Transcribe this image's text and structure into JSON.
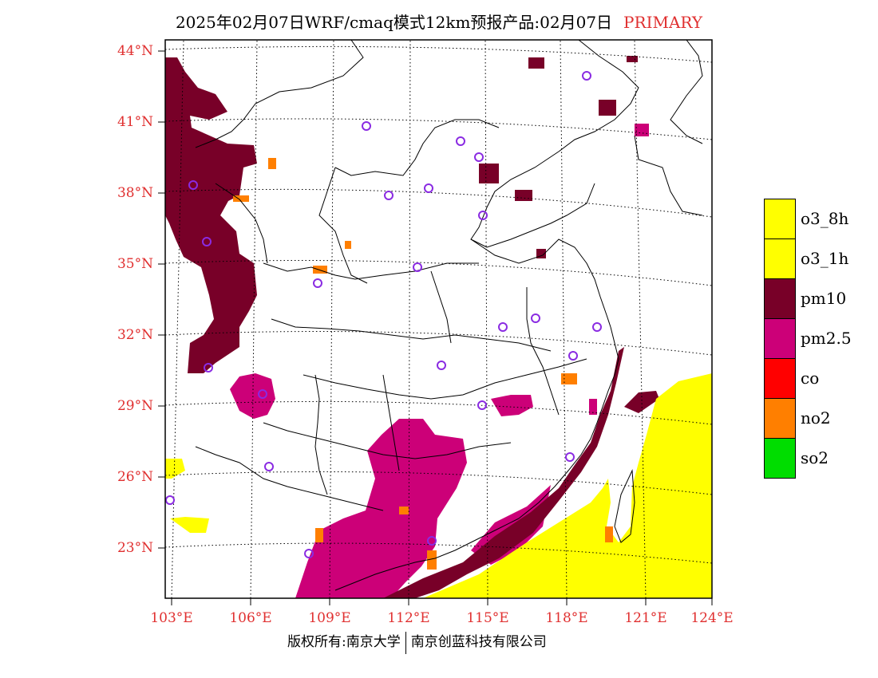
{
  "title": {
    "text": "2025年02月07日WRF/cmaq模式12km预报产品:02月07日",
    "tag": "PRIMARY"
  },
  "axes": {
    "lat_labels": [
      "44°N",
      "41°N",
      "38°N",
      "35°N",
      "32°N",
      "29°N",
      "26°N",
      "23°N"
    ],
    "lon_labels": [
      "103°E",
      "106°E",
      "109°E",
      "112°E",
      "115°E",
      "118°E",
      "121°E",
      "124°E"
    ]
  },
  "legend": [
    {
      "label": "o3_8h",
      "color": "#ffff00"
    },
    {
      "label": "o3_1h",
      "color": "#ffff00"
    },
    {
      "label": "pm10",
      "color": "#780028"
    },
    {
      "label": "pm2.5",
      "color": "#cc0078"
    },
    {
      "label": "co",
      "color": "#ff0000"
    },
    {
      "label": "no2",
      "color": "#ff7f00"
    },
    {
      "label": "so2",
      "color": "#00dd00"
    }
  ],
  "footer": {
    "left": "版权所有:南京大学",
    "right": "南京创蓝科技有限公司"
  },
  "colors": {
    "pm10": "#780028",
    "pm25": "#cc0078",
    "o3": "#ffff00",
    "no2": "#ff7f00",
    "station": "#8a2be2",
    "axis_label": "#e03030"
  }
}
